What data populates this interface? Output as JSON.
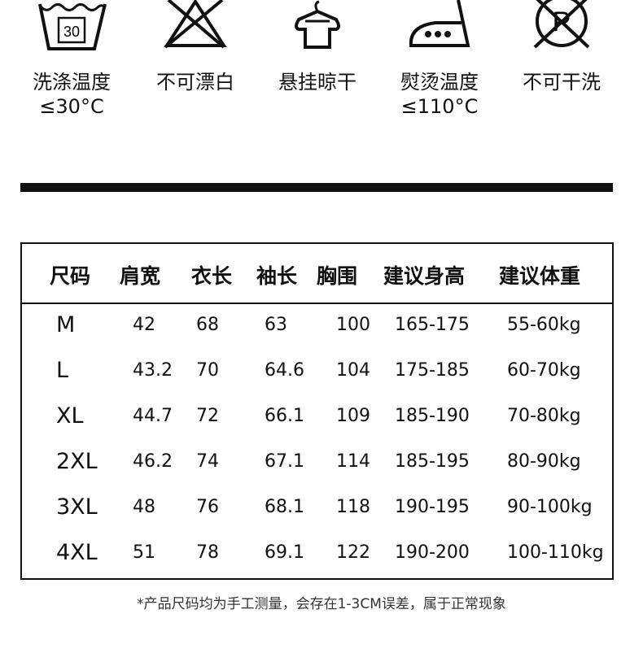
{
  "care": [
    {
      "icon": "wash-30-icon",
      "label": "洗涤温度",
      "sub": "≤30°C",
      "number": "30"
    },
    {
      "icon": "no-bleach-icon",
      "label": "不可漂白",
      "sub": ""
    },
    {
      "icon": "hang-dry-icon",
      "label": "悬挂晾干",
      "sub": ""
    },
    {
      "icon": "iron-medium-icon",
      "label": "熨烫温度",
      "sub": "≤110°C"
    },
    {
      "icon": "no-dry-clean-icon",
      "label": "不可干洗",
      "sub": "",
      "letter": "P"
    }
  ],
  "table": {
    "headers": [
      "尺码",
      "肩宽",
      "衣长",
      "袖长",
      "胸围",
      "建议身高",
      "建议体重"
    ],
    "rows": [
      [
        "M",
        "42",
        "68",
        "63",
        "100",
        "165-175",
        "55-60kg"
      ],
      [
        "L",
        "43.2",
        "70",
        "64.6",
        "104",
        "175-185",
        "60-70kg"
      ],
      [
        "XL",
        "44.7",
        "72",
        "66.1",
        "109",
        "185-190",
        "70-80kg"
      ],
      [
        "2XL",
        "46.2",
        "74",
        "67.1",
        "114",
        "185-195",
        "80-90kg"
      ],
      [
        "3XL",
        "48",
        "76",
        "68.1",
        "118",
        "190-195",
        "90-100kg"
      ],
      [
        "4XL",
        "51",
        "78",
        "69.1",
        "122",
        "190-200",
        "100-110kg"
      ]
    ]
  },
  "note": "*产品尺码均为手工测量，会存在1-3CM误差，属于正常现象"
}
